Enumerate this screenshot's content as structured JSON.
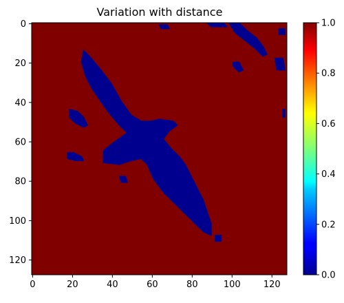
{
  "chart_data": {
    "type": "heatmap",
    "title": "Variation with distance",
    "xlabel": "",
    "ylabel": "",
    "grid": false,
    "colormap": "jet",
    "image_size": [
      128,
      128
    ],
    "xlim": [
      -0.5,
      127.5
    ],
    "ylim": [
      127.5,
      -0.5
    ],
    "x_ticks": [
      0,
      20,
      40,
      60,
      80,
      100,
      120
    ],
    "x_tick_labels": [
      "0",
      "20",
      "40",
      "60",
      "80",
      "100",
      "120"
    ],
    "y_ticks": [
      0,
      20,
      40,
      60,
      80,
      100,
      120
    ],
    "y_tick_labels": [
      "0",
      "20",
      "40",
      "60",
      "80",
      "100",
      "120"
    ],
    "colorbar": {
      "vmin": 0.0,
      "vmax": 1.0,
      "ticks": [
        0.0,
        0.2,
        0.4,
        0.6,
        0.8,
        1.0
      ],
      "tick_labels": [
        "0.0",
        "0.2",
        "0.4",
        "0.6",
        "0.8",
        "1.0"
      ]
    },
    "background_value": 1.0,
    "foreground_value": 0.0,
    "colors": {
      "low": "#00008f",
      "high": "#800000"
    },
    "foreground_regions": [
      {
        "label": "bird-body",
        "points": [
          [
            26,
            14
          ],
          [
            29,
            17
          ],
          [
            34,
            23
          ],
          [
            40,
            31
          ],
          [
            45,
            40
          ],
          [
            50,
            47
          ],
          [
            55,
            50
          ],
          [
            60,
            50
          ],
          [
            64,
            49
          ],
          [
            71,
            50
          ],
          [
            73,
            52
          ],
          [
            69,
            55
          ],
          [
            66,
            59
          ],
          [
            70,
            64
          ],
          [
            74,
            68
          ],
          [
            77,
            72
          ],
          [
            80,
            78
          ],
          [
            83,
            84
          ],
          [
            86,
            90
          ],
          [
            88,
            96
          ],
          [
            90,
            102
          ],
          [
            90,
            108
          ],
          [
            86,
            106
          ],
          [
            81,
            101
          ],
          [
            76,
            96
          ],
          [
            71,
            91
          ],
          [
            66,
            86
          ],
          [
            61,
            79
          ],
          [
            58,
            72
          ],
          [
            55,
            69
          ],
          [
            50,
            70
          ],
          [
            44,
            72
          ],
          [
            36,
            71
          ],
          [
            36,
            65
          ],
          [
            41,
            61
          ],
          [
            45,
            58
          ],
          [
            48,
            56
          ],
          [
            44,
            52
          ],
          [
            39,
            46
          ],
          [
            34,
            39
          ],
          [
            30,
            33
          ],
          [
            27,
            27
          ],
          [
            25,
            20
          ]
        ]
      },
      {
        "label": "left-blob-1",
        "points": [
          [
            19,
            44
          ],
          [
            23,
            45
          ],
          [
            26,
            48
          ],
          [
            28,
            52
          ],
          [
            26,
            53
          ],
          [
            22,
            51
          ],
          [
            19,
            48
          ]
        ]
      },
      {
        "label": "left-blob-2",
        "points": [
          [
            18,
            66
          ],
          [
            21,
            66
          ],
          [
            25,
            68
          ],
          [
            26,
            70
          ],
          [
            22,
            70
          ],
          [
            18,
            69
          ]
        ]
      },
      {
        "label": "small-blob-1",
        "points": [
          [
            44,
            78
          ],
          [
            47,
            78
          ],
          [
            48,
            81
          ],
          [
            45,
            81
          ]
        ]
      },
      {
        "label": "small-blob-2",
        "points": [
          [
            92,
            108
          ],
          [
            95,
            108
          ],
          [
            95,
            111
          ],
          [
            92,
            111
          ]
        ]
      },
      {
        "label": "top-streak-1",
        "points": [
          [
            64,
            1
          ],
          [
            68,
            1
          ],
          [
            69,
            3
          ],
          [
            65,
            3
          ]
        ]
      },
      {
        "label": "top-streak-2",
        "points": [
          [
            88,
            0
          ],
          [
            96,
            0
          ],
          [
            98,
            2
          ],
          [
            90,
            2
          ]
        ]
      },
      {
        "label": "top-streak-3",
        "points": [
          [
            99,
            0
          ],
          [
            104,
            0
          ],
          [
            108,
            4
          ],
          [
            113,
            8
          ],
          [
            116,
            12
          ],
          [
            118,
            16
          ],
          [
            116,
            17
          ],
          [
            112,
            13
          ],
          [
            107,
            9
          ],
          [
            102,
            5
          ]
        ]
      },
      {
        "label": "top-streak-4",
        "points": [
          [
            124,
            3
          ],
          [
            127,
            3
          ],
          [
            127,
            6
          ],
          [
            124,
            6
          ]
        ]
      },
      {
        "label": "right-streak-1",
        "points": [
          [
            101,
            20
          ],
          [
            104,
            20
          ],
          [
            106,
            24
          ],
          [
            104,
            25
          ],
          [
            101,
            22
          ]
        ]
      },
      {
        "label": "right-streak-2",
        "points": [
          [
            122,
            18
          ],
          [
            126,
            18
          ],
          [
            127,
            24
          ],
          [
            123,
            24
          ]
        ]
      },
      {
        "label": "right-edge-blob",
        "points": [
          [
            126,
            44
          ],
          [
            127,
            44
          ],
          [
            127,
            48
          ],
          [
            126,
            48
          ]
        ]
      }
    ]
  }
}
